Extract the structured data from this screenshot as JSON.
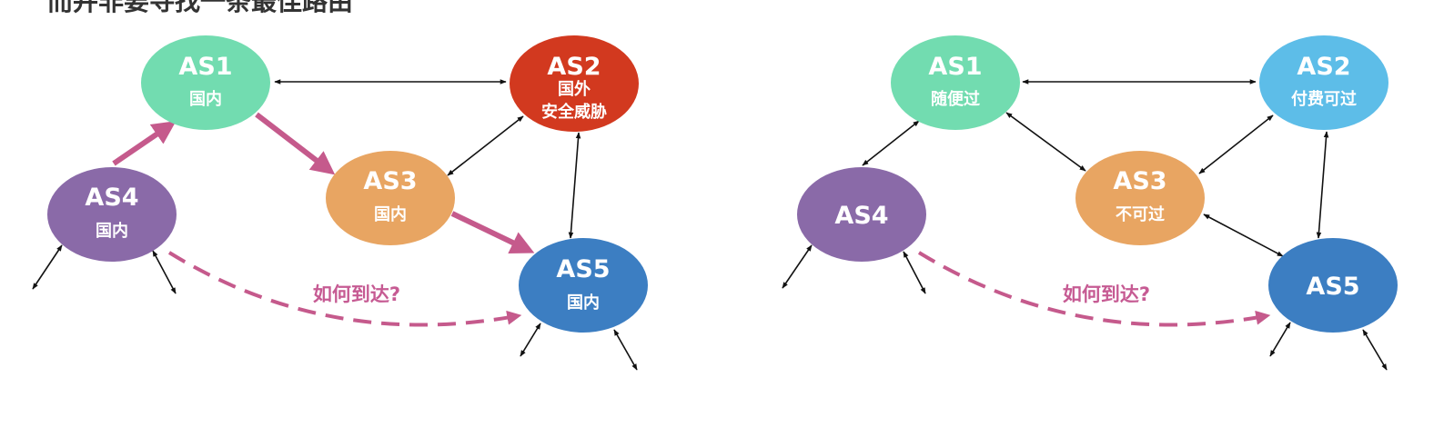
{
  "title": "而并非要寻找一条最佳路由",
  "question_label": "如何到达?",
  "colors": {
    "green": "#72dcb0",
    "red": "#d2391f",
    "orange": "#e8a562",
    "purple": "#8a6aa8",
    "blue": "#3c7ec2",
    "lightblue": "#5dbde8",
    "route": "#c55a8c"
  },
  "left_diagram": {
    "nodes": [
      {
        "id": "AS1",
        "label": "AS1",
        "sub": [
          "国内"
        ]
      },
      {
        "id": "AS2",
        "label": "AS2",
        "sub": [
          "国外",
          "安全威胁"
        ]
      },
      {
        "id": "AS3",
        "label": "AS3",
        "sub": [
          "国内"
        ]
      },
      {
        "id": "AS4",
        "label": "AS4",
        "sub": [
          "国内"
        ]
      },
      {
        "id": "AS5",
        "label": "AS5",
        "sub": [
          "国内"
        ]
      }
    ]
  },
  "right_diagram": {
    "nodes": [
      {
        "id": "AS1",
        "label": "AS1",
        "sub": [
          "随便过"
        ]
      },
      {
        "id": "AS2",
        "label": "AS2",
        "sub": [
          "付费可过"
        ]
      },
      {
        "id": "AS3",
        "label": "AS3",
        "sub": [
          "不可过"
        ]
      },
      {
        "id": "AS4",
        "label": "AS4",
        "sub": []
      },
      {
        "id": "AS5",
        "label": "AS5",
        "sub": []
      }
    ]
  }
}
